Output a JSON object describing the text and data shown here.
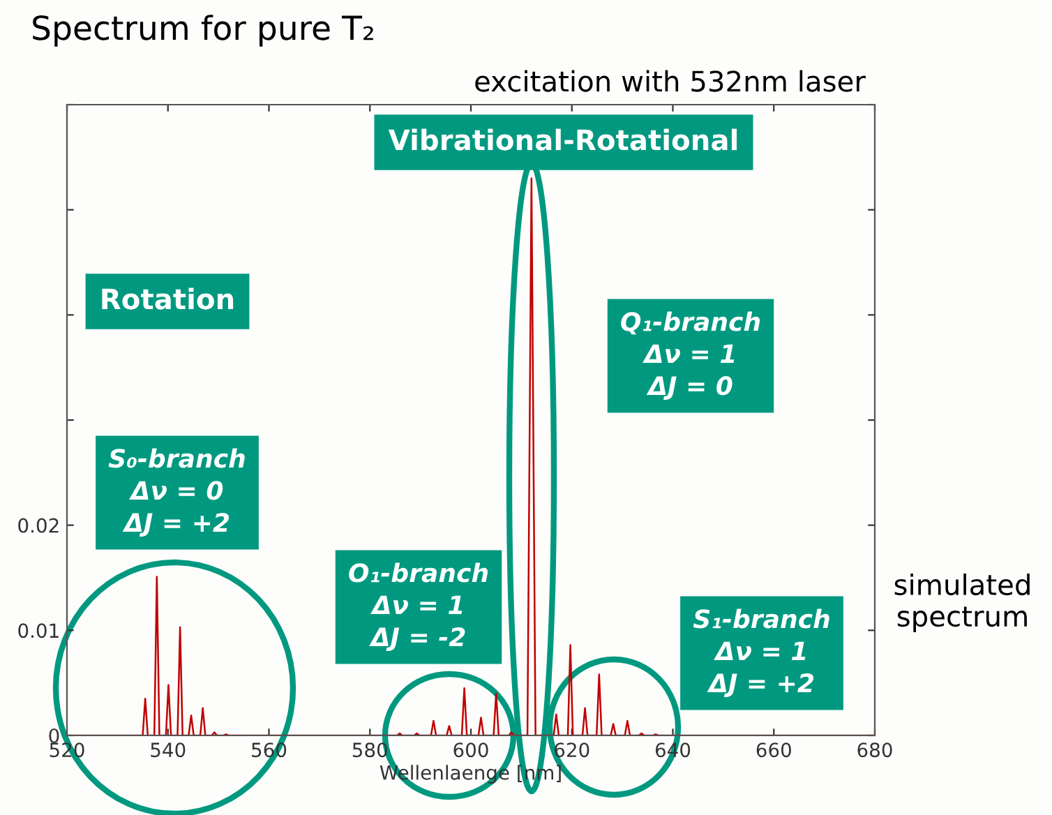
{
  "chart_data": {
    "type": "line",
    "title": "Spectrum for pure T₂",
    "subtitle": "excitation with 532nm laser",
    "xlabel": "Wellenlaenge [nm]",
    "annotations": [
      "Vibrational-Rotational",
      "Rotation",
      "Q₁-branch\nΔν = 1\nΔJ = 0",
      "S₀-branch\nΔν = 0\nΔJ = +2",
      "O₁-branch\nΔν = 1\nΔJ = -2",
      "S₁-branch\nΔν = 1\nΔJ = +2",
      "simulated\nspectrum"
    ],
    "xlim": [
      520,
      680
    ],
    "xticks": [
      520,
      540,
      560,
      580,
      600,
      620,
      640,
      660,
      680
    ],
    "ylim": [
      0,
      0.06
    ],
    "yticks": [
      0,
      0.01,
      0.02,
      {
        "value": 0.03,
        "label": null
      },
      {
        "value": 0.04,
        "label": null
      },
      {
        "value": 0.05,
        "label": null
      },
      {
        "value": 0.06,
        "label": null
      }
    ],
    "grid": false,
    "marker": "none",
    "line_style": "solid",
    "series": [
      {
        "color": "#c00000",
        "x": [
          520,
          535.0,
          535.5,
          536.0,
          537.3,
          537.8,
          538.3,
          539.6,
          540.1,
          540.6,
          541.9,
          542.4,
          542.9,
          544.1,
          544.6,
          545.1,
          546.4,
          546.9,
          547.4,
          548.7,
          549.2,
          549.7,
          551.0,
          551.5,
          552.0,
          585.4,
          585.9,
          586.4,
          588.8,
          589.3,
          589.8,
          592.1,
          592.6,
          593.1,
          595.2,
          595.7,
          596.2,
          598.2,
          598.7,
          599.2,
          601.5,
          602.0,
          602.5,
          604.5,
          605.0,
          605.5,
          607.5,
          608.0,
          608.5,
          611.2,
          612.0,
          612.8,
          616.4,
          616.9,
          617.4,
          619.2,
          619.7,
          620.2,
          622.1,
          622.6,
          623.1,
          624.9,
          625.4,
          625.9,
          627.7,
          628.2,
          628.7,
          630.5,
          631.0,
          631.5,
          633.3,
          633.8,
          634.3,
          636.1,
          636.6,
          637.1,
          680
        ],
        "values": [
          0,
          0,
          0.0035,
          0,
          0,
          0.0151,
          0,
          0,
          0.0048,
          0,
          0,
          0.0103,
          0,
          0,
          0.0019,
          0,
          0,
          0.0026,
          0,
          0,
          0.0003,
          0,
          0,
          0.0001,
          0,
          0,
          0.0002,
          0,
          0,
          0.0002,
          0,
          0,
          0.0014,
          0,
          0,
          0.0009,
          0,
          0,
          0.0045,
          0,
          0,
          0.0017,
          0,
          0,
          0.004,
          0,
          0,
          0.0003,
          0,
          0,
          0.053,
          0,
          0,
          0.002,
          0,
          0,
          0.0086,
          0,
          0,
          0.0026,
          0,
          0,
          0.0058,
          0,
          0,
          0.0011,
          0,
          0,
          0.0014,
          0,
          0,
          0.0002,
          0,
          0,
          0.0001,
          0,
          0
        ]
      }
    ]
  }
}
